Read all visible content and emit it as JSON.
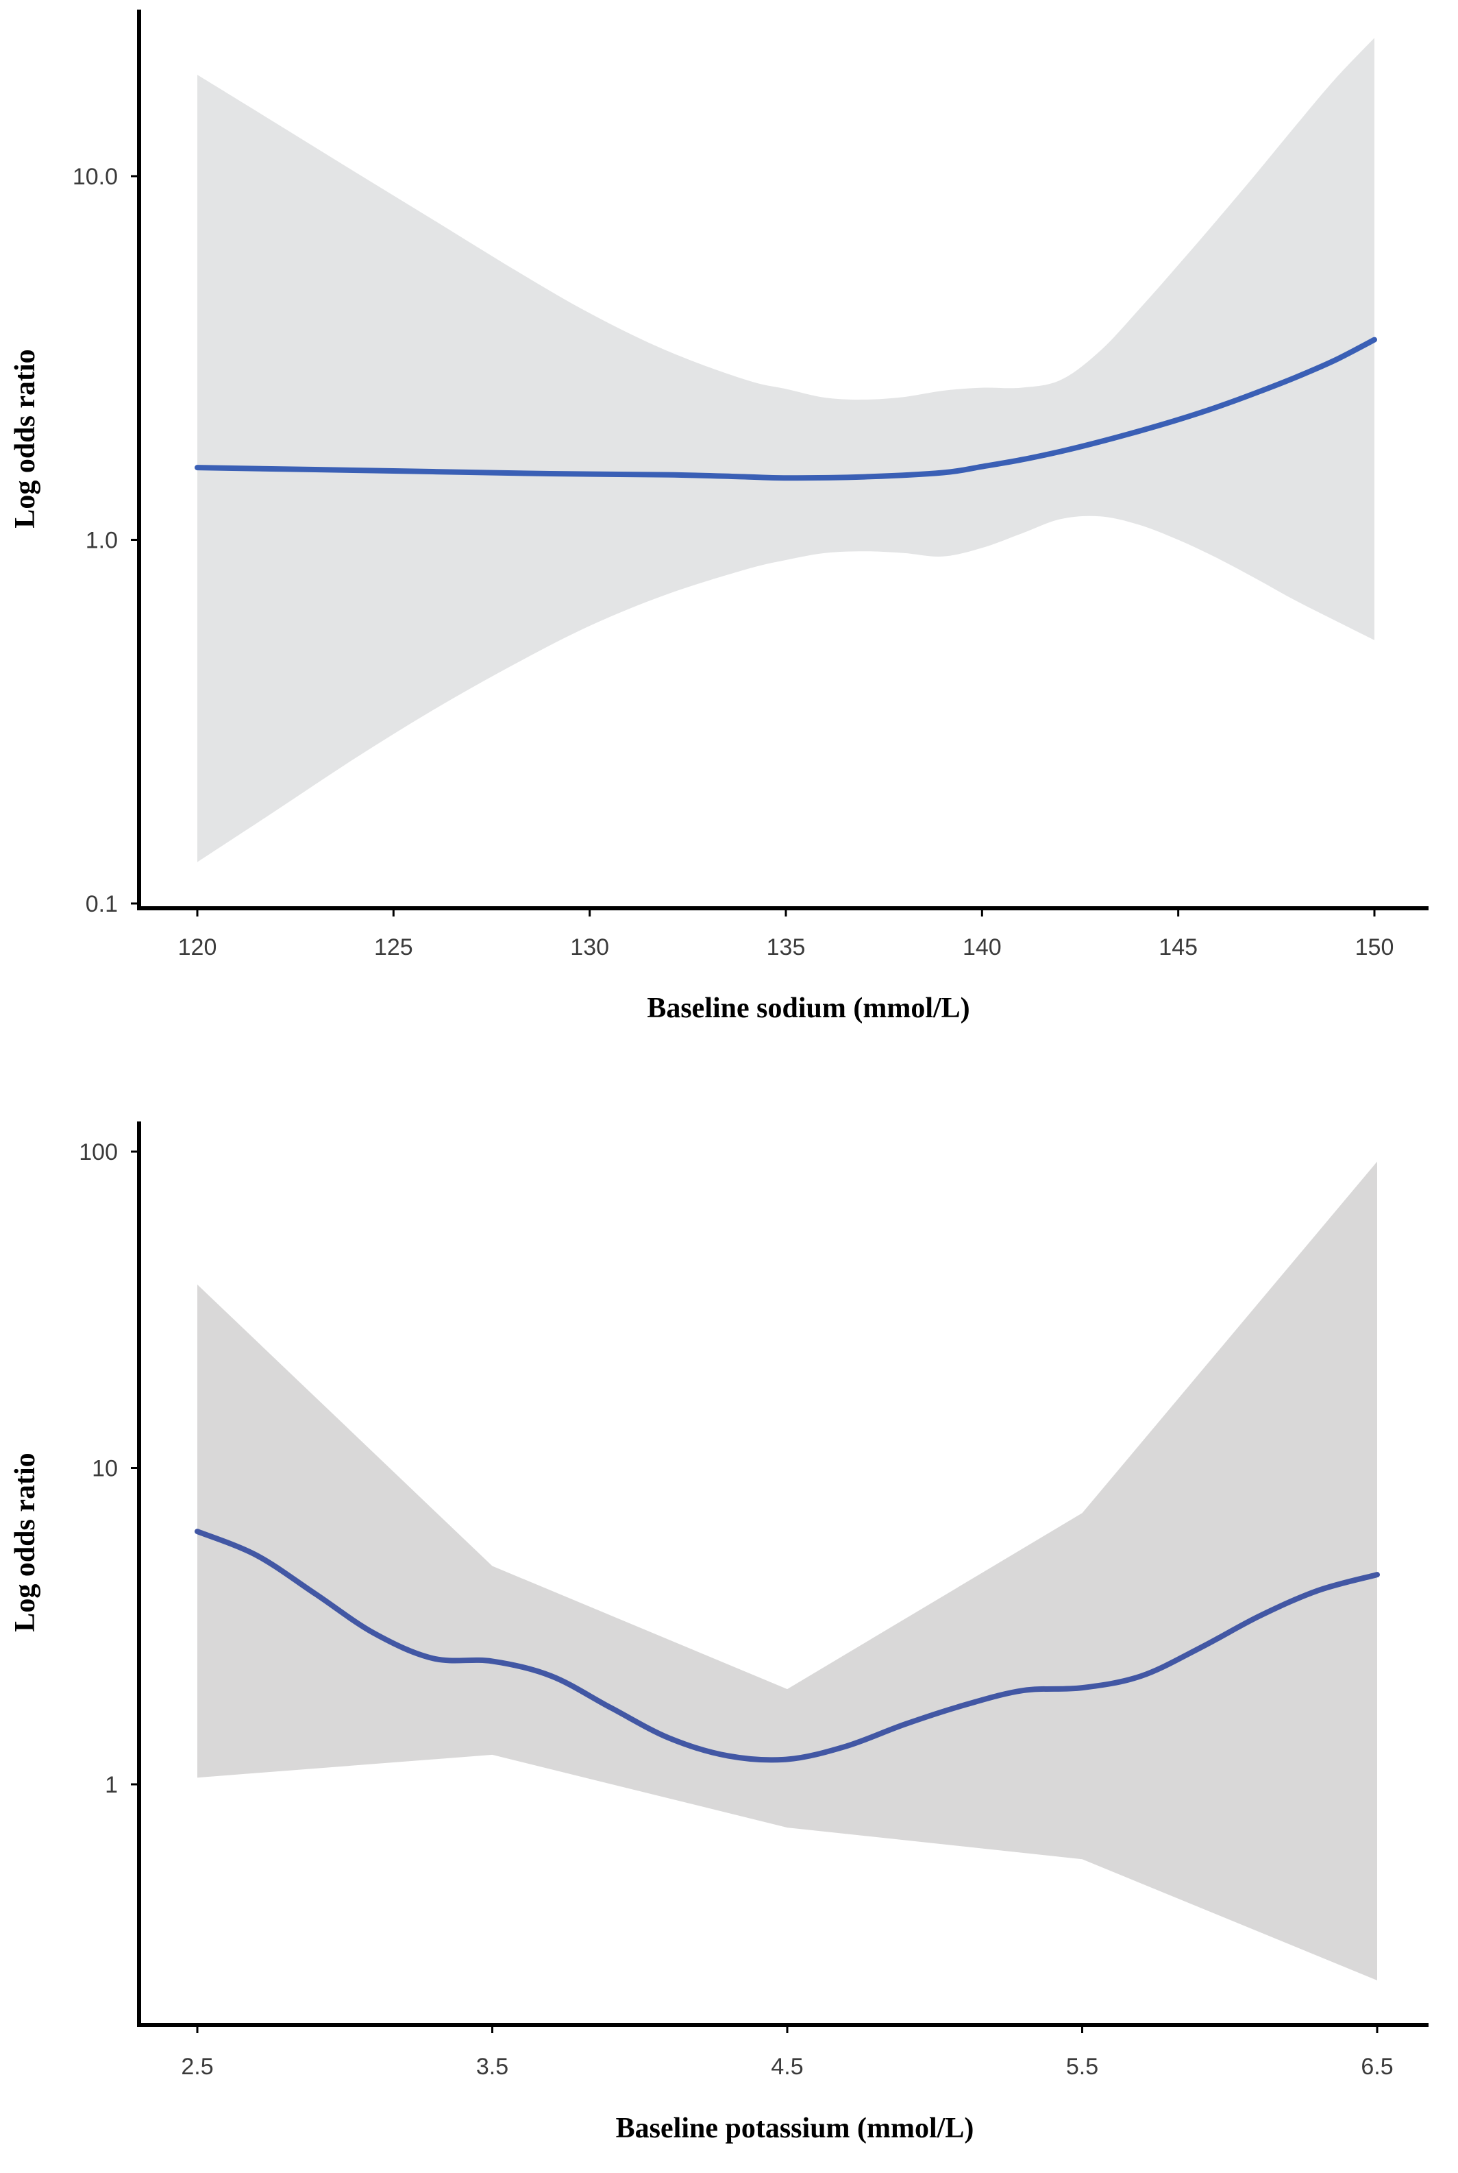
{
  "chart_data": [
    {
      "type": "line",
      "title": "",
      "xlabel": "Baseline sodium (mmol/L)",
      "ylabel": "Log odds ratio",
      "y_scale": "log",
      "xlim": [
        118,
        152
      ],
      "ylim": [
        0.1,
        34
      ],
      "x_ticks": [
        120,
        125,
        130,
        135,
        140,
        145,
        150
      ],
      "x_tick_labels": [
        "120",
        "125",
        "130",
        "135",
        "140",
        "145",
        "150"
      ],
      "y_ticks": [
        0.1,
        1.0,
        10.0
      ],
      "y_tick_labels": [
        "0.1",
        "1.0",
        "10.0"
      ],
      "grid": false,
      "colors": {
        "line": "#3a5fb5",
        "band": "#e3e4e5"
      },
      "series": [
        {
          "x": [
            120,
            123,
            126,
            129,
            132,
            134,
            135,
            137,
            139,
            140,
            141,
            142,
            143,
            144,
            145,
            146,
            147,
            148,
            149,
            150
          ],
          "y": [
            1.58,
            1.56,
            1.54,
            1.52,
            1.51,
            1.49,
            1.48,
            1.49,
            1.53,
            1.59,
            1.66,
            1.75,
            1.86,
            1.99,
            2.14,
            2.32,
            2.54,
            2.8,
            3.12,
            3.55
          ]
        }
      ],
      "confidence_band": {
        "x": [
          120,
          122,
          124,
          126,
          128,
          130,
          132,
          134,
          135,
          136,
          137,
          138,
          139,
          140,
          141,
          142,
          143,
          144,
          145,
          146,
          147,
          148,
          149,
          150
        ],
        "upper": [
          19,
          14,
          10.3,
          7.6,
          5.6,
          4.2,
          3.3,
          2.75,
          2.6,
          2.46,
          2.43,
          2.47,
          2.57,
          2.62,
          2.62,
          2.75,
          3.3,
          4.3,
          5.7,
          7.6,
          10.2,
          13.8,
          18.5,
          24
        ],
        "lower": [
          0.13,
          0.18,
          0.25,
          0.34,
          0.45,
          0.58,
          0.71,
          0.83,
          0.88,
          0.92,
          0.93,
          0.92,
          0.9,
          0.95,
          1.04,
          1.14,
          1.16,
          1.1,
          1.0,
          0.89,
          0.78,
          0.68,
          0.6,
          0.53
        ]
      }
    },
    {
      "type": "line",
      "title": "",
      "xlabel": "Baseline potassium (mmol/L)",
      "ylabel": "Log odds ratio",
      "y_scale": "log",
      "xlim": [
        2.3,
        6.7
      ],
      "ylim": [
        0.16,
        125
      ],
      "x_ticks": [
        2.5,
        3.5,
        4.5,
        5.5,
        6.5
      ],
      "x_tick_labels": [
        "2.5",
        "3.5",
        "4.5",
        "5.5",
        "6.5"
      ],
      "y_ticks": [
        1,
        10,
        100
      ],
      "y_tick_labels": [
        "1",
        "10",
        "100"
      ],
      "grid": false,
      "colors": {
        "line": "#4257a4",
        "band": "#d9d8d8"
      },
      "series": [
        {
          "x": [
            2.5,
            2.7,
            2.9,
            3.1,
            3.3,
            3.5,
            3.7,
            3.9,
            4.1,
            4.3,
            4.5,
            4.7,
            4.9,
            5.1,
            5.3,
            5.5,
            5.7,
            5.9,
            6.1,
            6.3,
            6.5
          ],
          "y": [
            6.3,
            5.3,
            4.0,
            3.0,
            2.5,
            2.45,
            2.2,
            1.75,
            1.4,
            1.23,
            1.2,
            1.32,
            1.55,
            1.78,
            1.98,
            2.02,
            2.2,
            2.7,
            3.4,
            4.1,
            4.6
          ]
        }
      ],
      "confidence_band": {
        "x": [
          2.5,
          3.5,
          4.5,
          5.5,
          6.5
        ],
        "upper": [
          38,
          4.9,
          2.0,
          7.2,
          93
        ],
        "lower": [
          1.05,
          1.24,
          0.73,
          0.58,
          0.24
        ]
      }
    }
  ]
}
